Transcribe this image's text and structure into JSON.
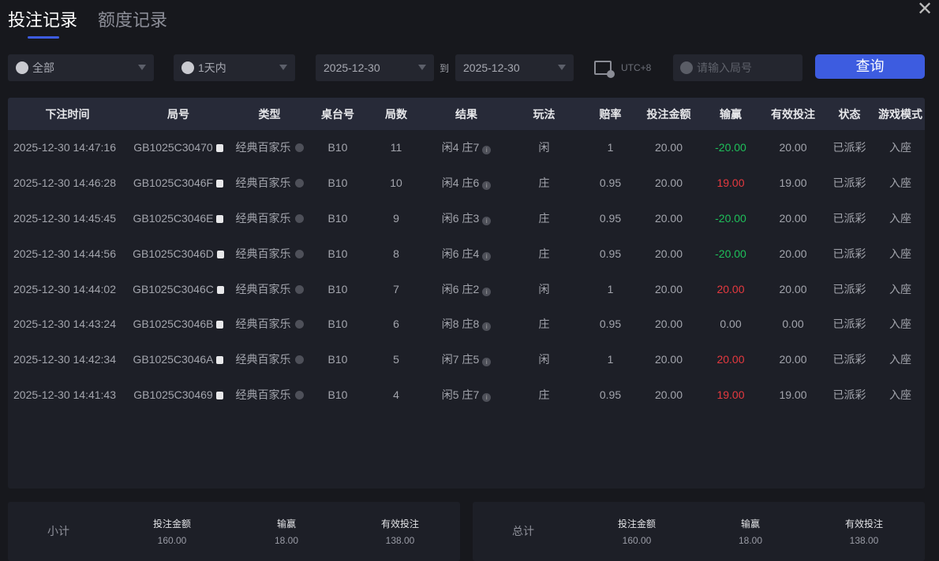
{
  "tabs": [
    {
      "label": "投注记录",
      "active": true
    },
    {
      "label": "额度记录",
      "active": false
    }
  ],
  "filters": {
    "game_type": "全部",
    "time_range": "1天内",
    "date_from": "2025-12-30",
    "to_label": "到",
    "date_to": "2025-12-30",
    "timezone": "UTC+8",
    "round_placeholder": "请输入局号",
    "query_label": "查询"
  },
  "table": {
    "columns": [
      "下注时间",
      "局号",
      "类型",
      "桌台号",
      "局数",
      "结果",
      "玩法",
      "赔率",
      "投注金额",
      "输赢",
      "有效投注",
      "状态",
      "游戏模式"
    ],
    "rows": [
      [
        "2025-12-30 14:47:16",
        "GB1025C30470",
        "经典百家乐",
        "B10",
        "11",
        "闲4 庄7",
        "闲",
        "1",
        "20.00",
        "-20.00",
        "20.00",
        "已派彩",
        "入座"
      ],
      [
        "2025-12-30 14:46:28",
        "GB1025C3046F",
        "经典百家乐",
        "B10",
        "10",
        "闲4 庄6",
        "庄",
        "0.95",
        "20.00",
        "19.00",
        "19.00",
        "已派彩",
        "入座"
      ],
      [
        "2025-12-30 14:45:45",
        "GB1025C3046E",
        "经典百家乐",
        "B10",
        "9",
        "闲6 庄3",
        "庄",
        "0.95",
        "20.00",
        "-20.00",
        "20.00",
        "已派彩",
        "入座"
      ],
      [
        "2025-12-30 14:44:56",
        "GB1025C3046D",
        "经典百家乐",
        "B10",
        "8",
        "闲6 庄4",
        "庄",
        "0.95",
        "20.00",
        "-20.00",
        "20.00",
        "已派彩",
        "入座"
      ],
      [
        "2025-12-30 14:44:02",
        "GB1025C3046C",
        "经典百家乐",
        "B10",
        "7",
        "闲6 庄2",
        "闲",
        "1",
        "20.00",
        "20.00",
        "20.00",
        "已派彩",
        "入座"
      ],
      [
        "2025-12-30 14:43:24",
        "GB1025C3046B",
        "经典百家乐",
        "B10",
        "6",
        "闲8 庄8",
        "庄",
        "0.95",
        "20.00",
        "0.00",
        "0.00",
        "已派彩",
        "入座"
      ],
      [
        "2025-12-30 14:42:34",
        "GB1025C3046A",
        "经典百家乐",
        "B10",
        "5",
        "闲7 庄5",
        "闲",
        "1",
        "20.00",
        "20.00",
        "20.00",
        "已派彩",
        "入座"
      ],
      [
        "2025-12-30 14:41:43",
        "GB1025C30469",
        "经典百家乐",
        "B10",
        "4",
        "闲5 庄7",
        "庄",
        "0.95",
        "20.00",
        "19.00",
        "19.00",
        "已派彩",
        "入座"
      ]
    ]
  },
  "subtotal": {
    "label": "小计",
    "bet_label": "投注金额",
    "bet": "160.00",
    "win_label": "输赢",
    "win": "18.00",
    "valid_label": "有效投注",
    "valid": "138.00"
  },
  "total": {
    "label": "总计",
    "bet_label": "投注金额",
    "bet": "160.00",
    "win_label": "输赢",
    "win": "18.00",
    "valid_label": "有效投注",
    "valid": "138.00"
  },
  "colors": {
    "accent": "#3d5ce0",
    "loss": "#1ec05a",
    "win": "#e6393f"
  }
}
